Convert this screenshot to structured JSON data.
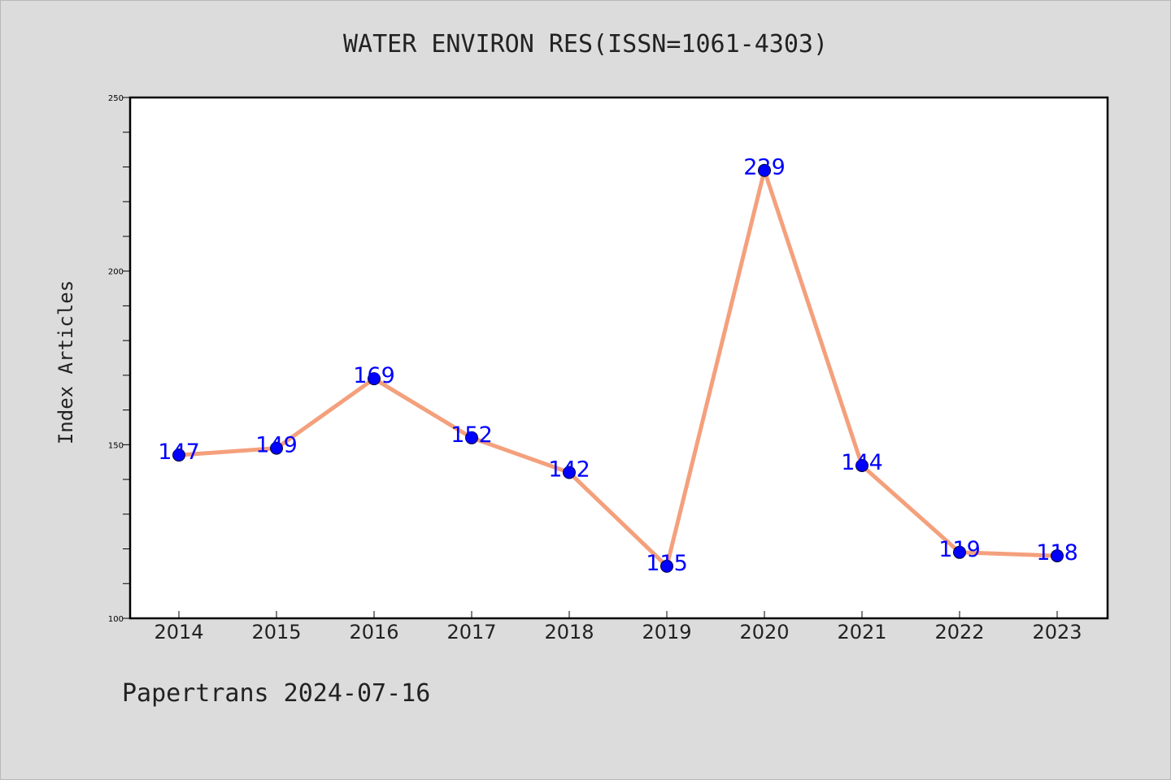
{
  "page": {
    "footer": "Papertrans 2024-07-16"
  },
  "colors": {
    "background": "#dcdcdc",
    "plot_background": "#ffffff",
    "line": "#f4a07c",
    "marker": "#0000ff",
    "data_label": "#0000ff",
    "text": "#222222"
  },
  "chart_data": {
    "type": "line",
    "title": "WATER ENVIRON RES(ISSN=1061-4303)",
    "xlabel": "",
    "ylabel": "Index Articles",
    "categories": [
      "2014",
      "2015",
      "2016",
      "2017",
      "2018",
      "2019",
      "2020",
      "2021",
      "2022",
      "2023"
    ],
    "values": [
      147,
      149,
      169,
      152,
      142,
      115,
      229,
      144,
      119,
      118
    ],
    "ylim": [
      100,
      250
    ],
    "y_ticks": [
      100,
      150,
      200,
      250
    ],
    "y_minor_step": 10,
    "grid": false,
    "legend": "none"
  }
}
